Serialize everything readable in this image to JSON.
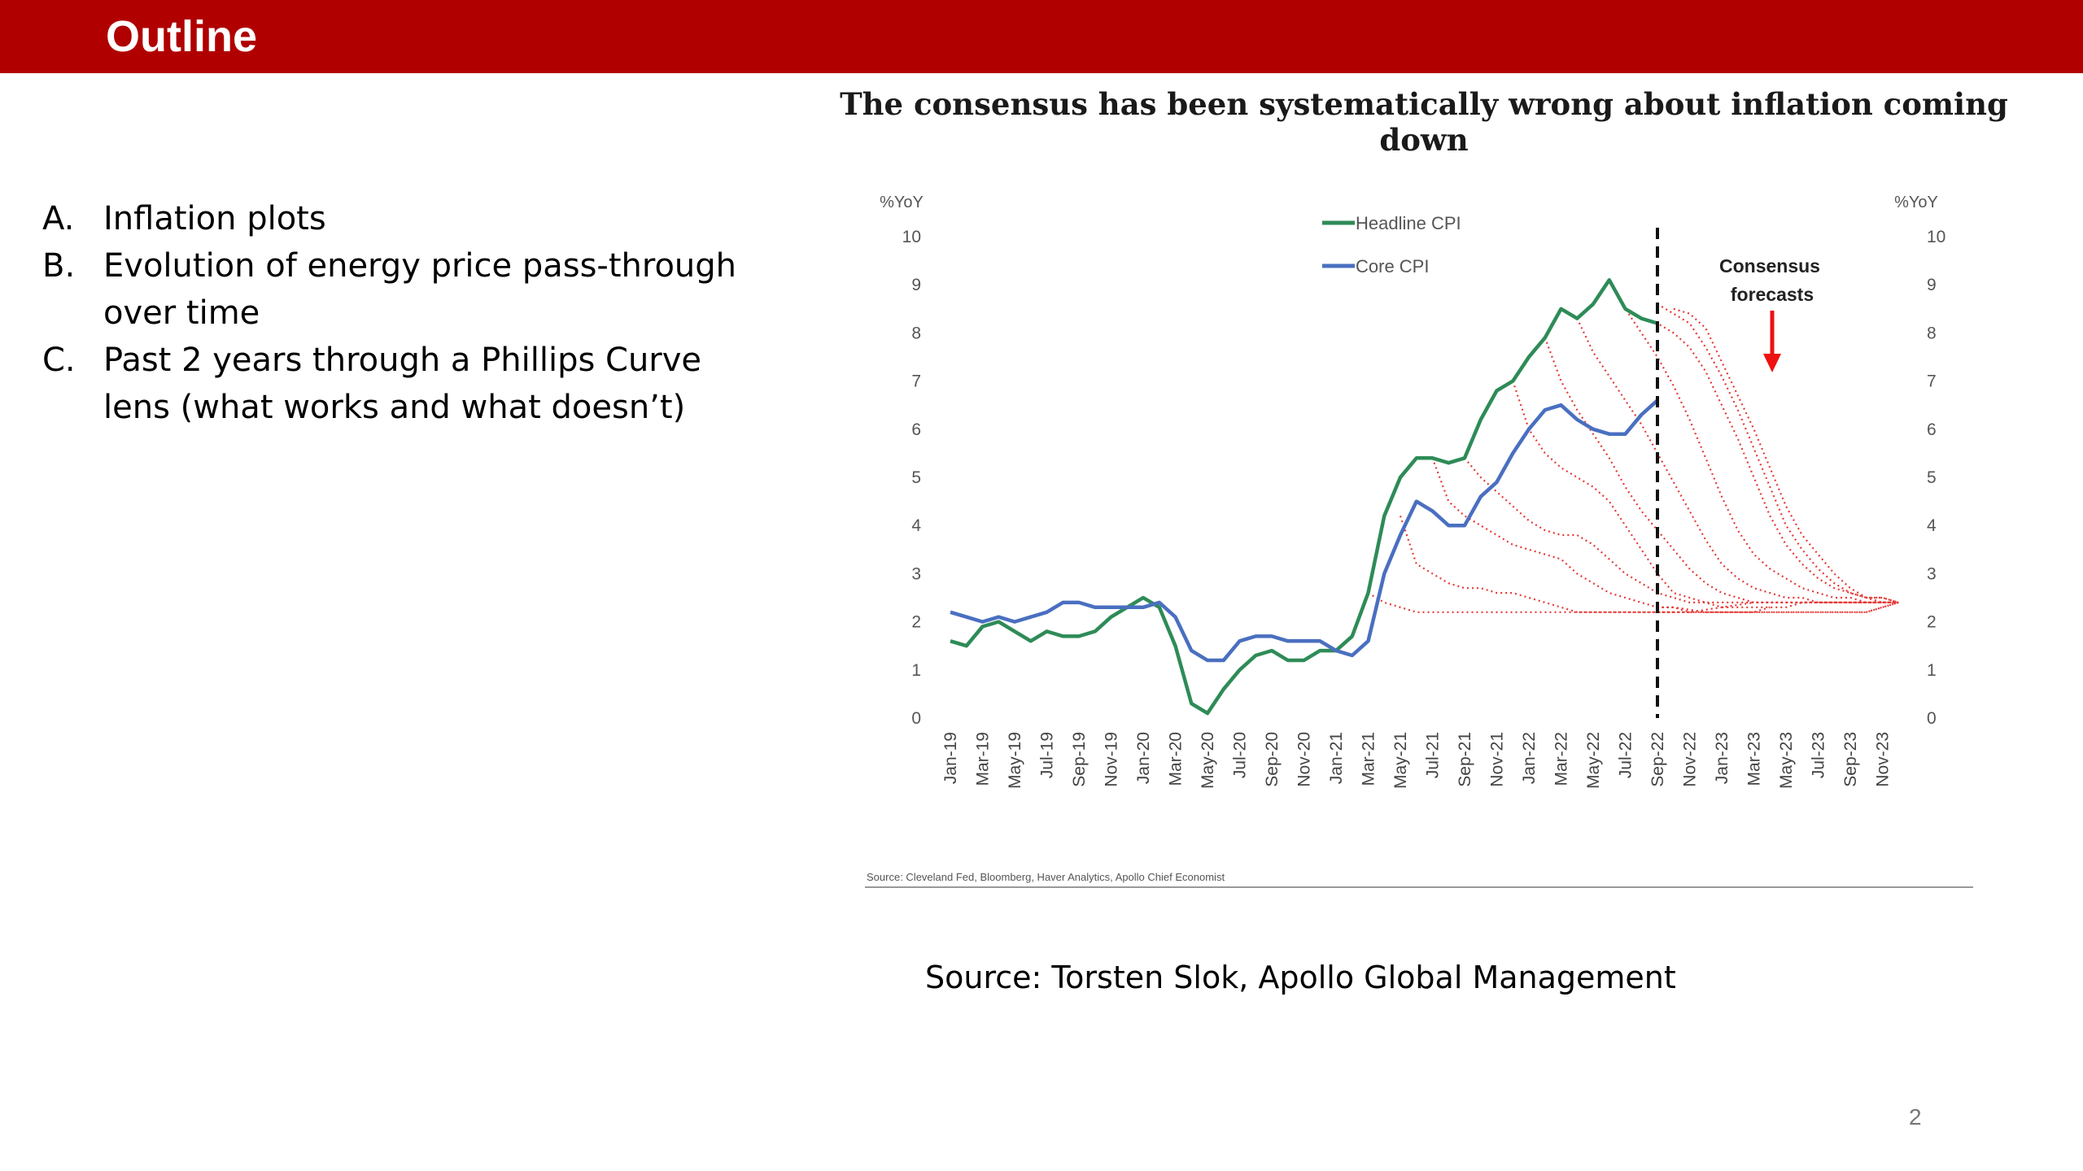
{
  "slide": {
    "title": "Outline",
    "outline": [
      {
        "marker": "A.",
        "text": "Inflation plots"
      },
      {
        "marker": "B.",
        "text": "Evolution of energy price pass-through over time"
      },
      {
        "marker": "C.",
        "text": "Past 2 years through a Phillips Curve lens (what works and what doesn’t)"
      }
    ],
    "source_caption": "Source: Torsten Slok, Apollo Global Management",
    "page_number": "2",
    "colors": {
      "header": "#b00000",
      "headline": "#2e8b57",
      "core": "#4a6fc0",
      "forecast": "#e53935"
    }
  },
  "chart_data": {
    "type": "line",
    "title": "The consensus has been systematically wrong about inflation coming down",
    "ylabel_left": "%YoY",
    "ylabel_right": "%YoY",
    "ylim": [
      0,
      10
    ],
    "y_ticks": [
      "0",
      "1",
      "2",
      "3",
      "4",
      "5",
      "6",
      "7",
      "8",
      "9",
      "10"
    ],
    "x_months": [
      "Jan-19",
      "Feb-19",
      "Mar-19",
      "Apr-19",
      "May-19",
      "Jun-19",
      "Jul-19",
      "Aug-19",
      "Sep-19",
      "Oct-19",
      "Nov-19",
      "Dec-19",
      "Jan-20",
      "Feb-20",
      "Mar-20",
      "Apr-20",
      "May-20",
      "Jun-20",
      "Jul-20",
      "Aug-20",
      "Sep-20",
      "Oct-20",
      "Nov-20",
      "Dec-20",
      "Jan-21",
      "Feb-21",
      "Mar-21",
      "Apr-21",
      "May-21",
      "Jun-21",
      "Jul-21",
      "Aug-21",
      "Sep-21",
      "Oct-21",
      "Nov-21",
      "Dec-21",
      "Jan-22",
      "Feb-22",
      "Mar-22",
      "Apr-22",
      "May-22",
      "Jun-22",
      "Jul-22",
      "Aug-22",
      "Sep-22",
      "Oct-22",
      "Nov-22",
      "Dec-22",
      "Jan-23",
      "Feb-23",
      "Mar-23",
      "Apr-23",
      "May-23",
      "Jun-23",
      "Jul-23",
      "Aug-23",
      "Sep-23",
      "Oct-23",
      "Nov-23",
      "Dec-23"
    ],
    "x_tick_labels": [
      "Jan-19",
      "Mar-19",
      "May-19",
      "Jul-19",
      "Sep-19",
      "Nov-19",
      "Jan-20",
      "Mar-20",
      "May-20",
      "Jul-20",
      "Sep-20",
      "Nov-20",
      "Jan-21",
      "Mar-21",
      "May-21",
      "Jul-21",
      "Sep-21",
      "Nov-21",
      "Jan-22",
      "Mar-22",
      "May-22",
      "Jul-22",
      "Sep-22",
      "Nov-22",
      "Jan-23",
      "Mar-23",
      "May-23",
      "Jul-23",
      "Sep-23",
      "Nov-23"
    ],
    "series": [
      {
        "name": "Headline CPI",
        "values": [
          1.6,
          1.5,
          1.9,
          2.0,
          1.8,
          1.6,
          1.8,
          1.7,
          1.7,
          1.8,
          2.1,
          2.3,
          2.5,
          2.3,
          1.5,
          0.3,
          0.1,
          0.6,
          1.0,
          1.3,
          1.4,
          1.2,
          1.2,
          1.4,
          1.4,
          1.7,
          2.6,
          4.2,
          5.0,
          5.4,
          5.4,
          5.3,
          5.4,
          6.2,
          6.8,
          7.0,
          7.5,
          7.9,
          8.5,
          8.3,
          8.6,
          9.1,
          8.5,
          8.3,
          8.2
        ]
      },
      {
        "name": "Core CPI",
        "values": [
          2.2,
          2.1,
          2.0,
          2.1,
          2.0,
          2.1,
          2.2,
          2.4,
          2.4,
          2.3,
          2.3,
          2.3,
          2.3,
          2.4,
          2.1,
          1.4,
          1.2,
          1.2,
          1.6,
          1.7,
          1.7,
          1.6,
          1.6,
          1.6,
          1.4,
          1.3,
          1.6,
          3.0,
          3.8,
          4.5,
          4.3,
          4.0,
          4.0,
          4.6,
          4.9,
          5.5,
          6.0,
          6.4,
          6.5,
          6.2,
          6.0,
          5.9,
          5.9,
          6.3,
          6.6
        ]
      }
    ],
    "forecast_paths": [
      {
        "start": 26,
        "values": [
          2.6,
          2.4,
          2.3,
          2.2,
          2.2,
          2.2,
          2.2,
          2.2,
          2.2,
          2.2,
          2.2,
          2.2,
          2.2,
          2.2,
          2.2,
          2.2,
          2.2,
          2.2,
          2.2,
          2.2
        ]
      },
      {
        "start": 28,
        "values": [
          4.2,
          3.2,
          3.0,
          2.8,
          2.7,
          2.7,
          2.6,
          2.6,
          2.5,
          2.4,
          2.3,
          2.2,
          2.2,
          2.2,
          2.2,
          2.2,
          2.2,
          2.2,
          2.2,
          2.2,
          2.2,
          2.2,
          2.2,
          2.2,
          2.2,
          2.2,
          2.2,
          2.2,
          2.2,
          2.2,
          2.3,
          2.4
        ]
      },
      {
        "start": 30,
        "values": [
          5.4,
          4.5,
          4.2,
          4.0,
          3.8,
          3.6,
          3.5,
          3.4,
          3.3,
          3.0,
          2.8,
          2.6,
          2.5,
          2.4,
          2.3,
          2.3,
          2.2,
          2.2,
          2.2,
          2.2,
          2.2,
          2.2,
          2.2,
          2.2,
          2.2,
          2.2,
          2.2,
          2.2,
          2.3,
          2.4
        ]
      },
      {
        "start": 32,
        "values": [
          5.4,
          5.0,
          4.7,
          4.4,
          4.1,
          3.9,
          3.8,
          3.8,
          3.6,
          3.3,
          3.0,
          2.8,
          2.6,
          2.5,
          2.4,
          2.4,
          2.3,
          2.3,
          2.3,
          2.3,
          2.3,
          2.4,
          2.4,
          2.4,
          2.4,
          2.4,
          2.4,
          2.4
        ]
      },
      {
        "start": 35,
        "values": [
          7.0,
          6.0,
          5.5,
          5.2,
          5.0,
          4.8,
          4.5,
          4.0,
          3.5,
          3.0,
          2.6,
          2.5,
          2.4,
          2.4,
          2.4,
          2.4,
          2.4,
          2.4,
          2.4,
          2.4,
          2.4,
          2.4,
          2.4,
          2.4,
          2.4
        ]
      },
      {
        "start": 37,
        "values": [
          7.9,
          7.0,
          6.4,
          5.9,
          5.4,
          4.8,
          4.3,
          3.9,
          3.5,
          3.1,
          2.8,
          2.6,
          2.5,
          2.4,
          2.4,
          2.4,
          2.4,
          2.4,
          2.4,
          2.4,
          2.4,
          2.4,
          2.4
        ]
      },
      {
        "start": 39,
        "values": [
          8.3,
          7.6,
          7.1,
          6.6,
          6.1,
          5.5,
          4.9,
          4.3,
          3.7,
          3.2,
          2.9,
          2.7,
          2.6,
          2.5,
          2.5,
          2.4,
          2.4,
          2.4,
          2.4,
          2.4,
          2.4
        ]
      },
      {
        "start": 41,
        "values": [
          9.1,
          8.5,
          8.0,
          7.5,
          6.9,
          6.2,
          5.4,
          4.6,
          3.9,
          3.4,
          3.1,
          2.9,
          2.7,
          2.6,
          2.5,
          2.5,
          2.4,
          2.4,
          2.4
        ]
      },
      {
        "start": 43,
        "values": [
          8.3,
          8.2,
          8.0,
          7.7,
          7.2,
          6.5,
          5.8,
          5.0,
          4.2,
          3.6,
          3.2,
          2.9,
          2.7,
          2.6,
          2.5,
          2.5,
          2.4
        ]
      },
      {
        "start": 44,
        "values": [
          8.6,
          8.4,
          8.2,
          7.7,
          7.1,
          6.4,
          5.6,
          4.8,
          4.0,
          3.5,
          3.1,
          2.8,
          2.6,
          2.5,
          2.5,
          2.4
        ]
      },
      {
        "start": 45,
        "values": [
          8.5,
          8.4,
          8.1,
          7.4,
          6.7,
          6.0,
          5.2,
          4.4,
          3.8,
          3.4,
          3.0,
          2.7,
          2.5,
          2.4,
          2.4
        ]
      }
    ],
    "forecast_low_cluster": [
      {
        "start": 44,
        "values": [
          2.3,
          2.3,
          2.25,
          2.2,
          2.2,
          2.2,
          2.2,
          2.3
        ]
      },
      {
        "start": 44,
        "values": [
          2.2,
          2.2,
          2.2,
          2.25,
          2.3,
          2.35,
          2.4
        ]
      }
    ],
    "vertical_marker": "Sep-22",
    "annotation": "Consensus forecasts",
    "legend": [
      "Headline CPI",
      "Core CPI"
    ],
    "source": "Source: Cleveland Fed, Bloomberg, Haver Analytics, Apollo Chief Economist"
  }
}
